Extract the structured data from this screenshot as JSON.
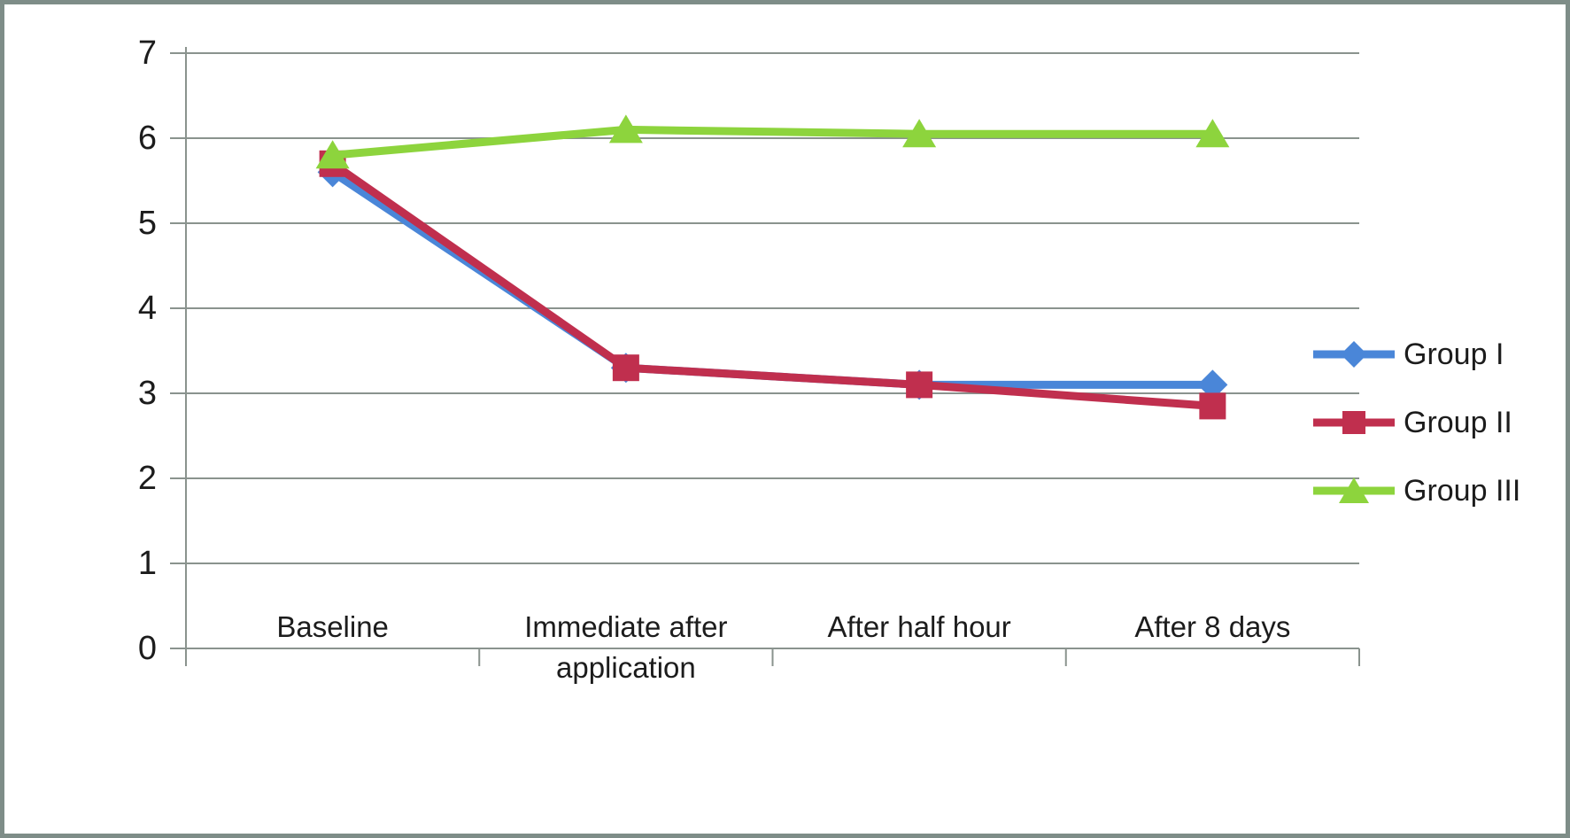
{
  "frame": {
    "background": "#ffffff",
    "border_color": "#7e8d88"
  },
  "chart_data": {
    "type": "line",
    "title": "",
    "xlabel": "",
    "ylabel": "",
    "categories": [
      "Baseline",
      "Immediate after application",
      "After half hour",
      "After 8 days"
    ],
    "series": [
      {
        "name": "Group I",
        "marker": "diamond",
        "color": "#4a86d8",
        "values": [
          5.6,
          3.3,
          3.1,
          3.1
        ]
      },
      {
        "name": "Group II",
        "marker": "square",
        "color": "#c02f4e",
        "values": [
          5.7,
          3.3,
          3.1,
          2.85
        ]
      },
      {
        "name": "Group III",
        "marker": "triangle",
        "color": "#8dd43d",
        "values": [
          5.8,
          6.1,
          6.05,
          6.05
        ]
      }
    ],
    "ylim": [
      0,
      7
    ],
    "yticks": [
      0,
      1,
      2,
      3,
      4,
      5,
      6,
      7
    ],
    "grid": true,
    "legend_position": "right",
    "gridline_color": "#8a938e",
    "axis_color": "#8a938e",
    "text_color": "#1c1c1c"
  }
}
